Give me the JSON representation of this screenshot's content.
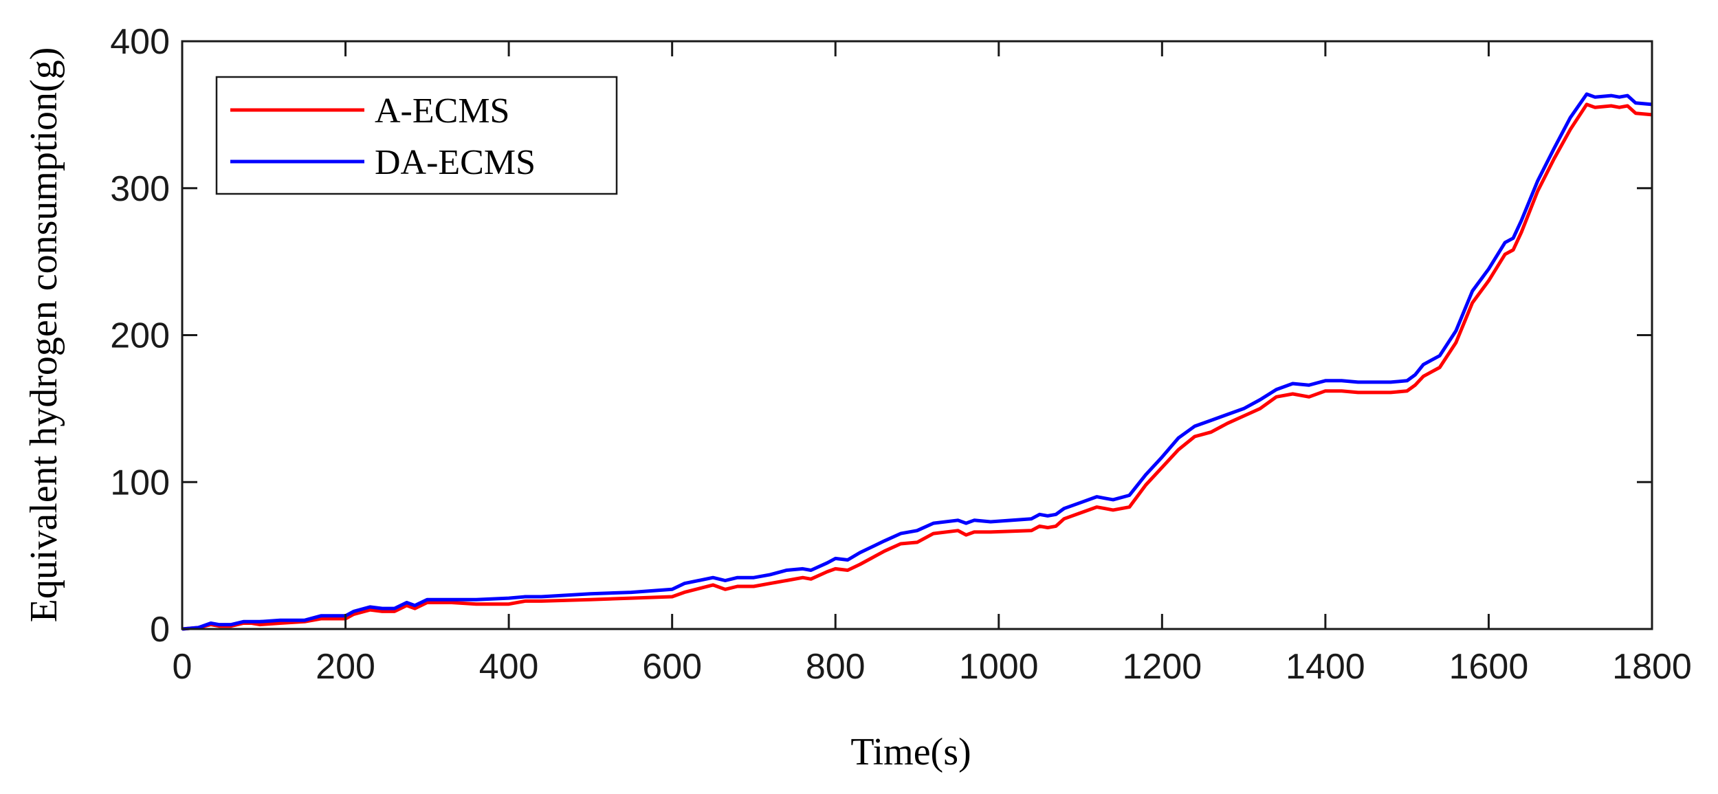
{
  "chart_data": {
    "type": "line",
    "title": "",
    "xlabel": "Time(s)",
    "ylabel": "Equivalent hydrogen consumption(g)",
    "xlim": [
      0,
      1800
    ],
    "ylim": [
      0,
      400
    ],
    "xticks": [
      0,
      200,
      400,
      600,
      800,
      1000,
      1200,
      1400,
      1600,
      1800
    ],
    "yticks": [
      0,
      100,
      200,
      300,
      400
    ],
    "xtick_labels": [
      "0",
      "200",
      "400",
      "600",
      "800",
      "1000",
      "1200",
      "1400",
      "1600",
      "1800"
    ],
    "ytick_labels": [
      "0",
      "100",
      "200",
      "300",
      "400"
    ],
    "grid": false,
    "legend_position": "top-left",
    "series": [
      {
        "name": "A-ECMS",
        "color": "#ff0000",
        "x": [
          0,
          20,
          35,
          45,
          60,
          75,
          85,
          95,
          120,
          150,
          170,
          180,
          200,
          210,
          230,
          245,
          260,
          275,
          285,
          300,
          330,
          360,
          400,
          420,
          440,
          500,
          550,
          600,
          615,
          650,
          665,
          680,
          700,
          720,
          740,
          760,
          770,
          790,
          800,
          815,
          830,
          860,
          880,
          900,
          920,
          950,
          960,
          970,
          990,
          1040,
          1050,
          1060,
          1070,
          1080,
          1100,
          1120,
          1130,
          1140,
          1160,
          1180,
          1200,
          1220,
          1240,
          1260,
          1280,
          1300,
          1320,
          1340,
          1360,
          1380,
          1400,
          1420,
          1440,
          1460,
          1480,
          1500,
          1510,
          1520,
          1530,
          1540,
          1560,
          1580,
          1600,
          1620,
          1630,
          1640,
          1660,
          1680,
          1700,
          1720,
          1730,
          1750,
          1760,
          1770,
          1780,
          1800
        ],
        "y": [
          0,
          1,
          3,
          2,
          2,
          4,
          4,
          3,
          4,
          5,
          7,
          7,
          7,
          10,
          13,
          12,
          12,
          16,
          14,
          18,
          18,
          17,
          17,
          19,
          19,
          20,
          21,
          22,
          25,
          30,
          27,
          29,
          29,
          31,
          33,
          35,
          34,
          39,
          41,
          40,
          44,
          53,
          58,
          59,
          65,
          67,
          64,
          66,
          66,
          67,
          70,
          69,
          70,
          75,
          79,
          83,
          82,
          81,
          83,
          98,
          110,
          122,
          131,
          134,
          140,
          145,
          150,
          158,
          160,
          158,
          162,
          162,
          161,
          161,
          161,
          162,
          166,
          172,
          175,
          178,
          195,
          222,
          237,
          255,
          258,
          270,
          298,
          320,
          340,
          357,
          355,
          356,
          355,
          356,
          351,
          350
        ]
      },
      {
        "name": "DA-ECMS",
        "color": "#0000ff",
        "x": [
          0,
          20,
          35,
          45,
          60,
          75,
          85,
          95,
          120,
          150,
          170,
          180,
          200,
          210,
          230,
          245,
          260,
          275,
          285,
          300,
          330,
          360,
          400,
          420,
          440,
          500,
          550,
          600,
          615,
          650,
          665,
          680,
          700,
          720,
          740,
          760,
          770,
          790,
          800,
          815,
          830,
          860,
          880,
          900,
          920,
          950,
          960,
          970,
          990,
          1040,
          1050,
          1060,
          1070,
          1080,
          1100,
          1120,
          1130,
          1140,
          1160,
          1180,
          1200,
          1220,
          1240,
          1260,
          1280,
          1300,
          1320,
          1340,
          1360,
          1380,
          1400,
          1420,
          1440,
          1460,
          1480,
          1500,
          1510,
          1520,
          1530,
          1540,
          1560,
          1580,
          1600,
          1620,
          1630,
          1640,
          1660,
          1680,
          1700,
          1720,
          1730,
          1750,
          1760,
          1770,
          1780,
          1800
        ],
        "y": [
          0,
          1,
          4,
          3,
          3,
          5,
          5,
          5,
          6,
          6,
          9,
          9,
          9,
          12,
          15,
          14,
          14,
          18,
          16,
          20,
          20,
          20,
          21,
          22,
          22,
          24,
          25,
          27,
          31,
          35,
          33,
          35,
          35,
          37,
          40,
          41,
          40,
          45,
          48,
          47,
          52,
          60,
          65,
          67,
          72,
          74,
          72,
          74,
          73,
          75,
          78,
          77,
          78,
          82,
          86,
          90,
          89,
          88,
          91,
          105,
          117,
          130,
          138,
          142,
          146,
          150,
          156,
          163,
          167,
          166,
          169,
          169,
          168,
          168,
          168,
          169,
          173,
          180,
          183,
          186,
          203,
          230,
          245,
          263,
          266,
          278,
          305,
          327,
          348,
          364,
          362,
          363,
          362,
          363,
          358,
          357
        ]
      }
    ]
  }
}
